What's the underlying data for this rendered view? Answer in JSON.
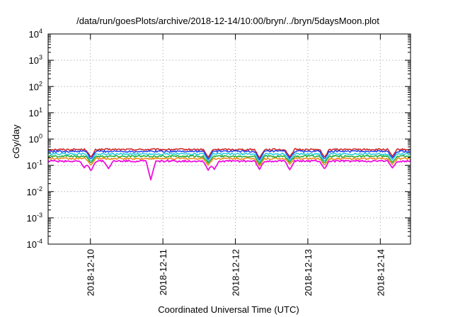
{
  "chart_data": {
    "type": "line",
    "title": "/data/run/goesPlots/archive/2018-12-14/10:00/bryn/../bryn/5daysMoon.plot",
    "xlabel": "Coordinated Universal Time (UTC)",
    "ylabel": "cGy/day",
    "y_scale": "log",
    "ylim": [
      0.0001,
      10000
    ],
    "xlim": [
      "2018-12-09 10:00",
      "2018-12-14 10:00"
    ],
    "y_ticks": [
      {
        "value": 0.0001,
        "base": "10",
        "exp": "-4"
      },
      {
        "value": 0.001,
        "base": "10",
        "exp": "-3"
      },
      {
        "value": 0.01,
        "base": "10",
        "exp": "-2"
      },
      {
        "value": 0.1,
        "base": "10",
        "exp": "-1"
      },
      {
        "value": 1,
        "base": "10",
        "exp": "0"
      },
      {
        "value": 10,
        "base": "10",
        "exp": "1"
      },
      {
        "value": 100,
        "base": "10",
        "exp": "2"
      },
      {
        "value": 1000,
        "base": "10",
        "exp": "3"
      },
      {
        "value": 10000,
        "base": "10",
        "exp": "4"
      }
    ],
    "x_ticks": [
      {
        "value": "2018-12-10 00:00",
        "label": "2018-12-10"
      },
      {
        "value": "2018-12-11 00:00",
        "label": "2018-12-11"
      },
      {
        "value": "2018-12-12 00:00",
        "label": "2018-12-12"
      },
      {
        "value": "2018-12-13 00:00",
        "label": "2018-12-13"
      },
      {
        "value": "2018-12-14 00:00",
        "label": "2018-12-14"
      }
    ],
    "grid": true,
    "legend": "none",
    "series": [
      {
        "color": "#cc2222",
        "baseline": 0.4,
        "dips": [
          {
            "x": "2018-12-10 00:10",
            "y": 0.2
          },
          {
            "x": "2018-12-11 15:00",
            "y": 0.2
          },
          {
            "x": "2018-12-12 08:00",
            "y": 0.19
          },
          {
            "x": "2018-12-12 18:00",
            "y": 0.21
          },
          {
            "x": "2018-12-13 05:30",
            "y": 0.2
          },
          {
            "x": "2018-12-14 04:00",
            "y": 0.22
          }
        ]
      },
      {
        "color": "#2040ee",
        "baseline": 0.34,
        "dips": [
          {
            "x": "2018-12-10 00:10",
            "y": 0.17
          },
          {
            "x": "2018-12-11 15:00",
            "y": 0.17
          },
          {
            "x": "2018-12-12 08:00",
            "y": 0.16
          },
          {
            "x": "2018-12-12 18:00",
            "y": 0.18
          },
          {
            "x": "2018-12-13 05:30",
            "y": 0.17
          },
          {
            "x": "2018-12-14 04:00",
            "y": 0.19
          }
        ]
      },
      {
        "color": "#22ccdd",
        "baseline": 0.27,
        "dips": [
          {
            "x": "2018-12-10 00:10",
            "y": 0.14
          },
          {
            "x": "2018-12-11 15:00",
            "y": 0.14
          },
          {
            "x": "2018-12-12 08:00",
            "y": 0.13
          },
          {
            "x": "2018-12-12 18:00",
            "y": 0.15
          },
          {
            "x": "2018-12-13 05:30",
            "y": 0.14
          },
          {
            "x": "2018-12-14 04:00",
            "y": 0.16
          }
        ]
      },
      {
        "color": "#22aa33",
        "baseline": 0.22,
        "dips": [
          {
            "x": "2018-12-10 00:10",
            "y": 0.12
          },
          {
            "x": "2018-12-11 15:00",
            "y": 0.12
          },
          {
            "x": "2018-12-12 08:00",
            "y": 0.11
          },
          {
            "x": "2018-12-12 18:00",
            "y": 0.13
          },
          {
            "x": "2018-12-13 05:30",
            "y": 0.12
          },
          {
            "x": "2018-12-14 04:00",
            "y": 0.13
          }
        ]
      },
      {
        "color": "#ee8811",
        "baseline": 0.18,
        "dips": [
          {
            "x": "2018-12-10 00:10",
            "y": 0.1
          },
          {
            "x": "2018-12-11 15:00",
            "y": 0.1
          },
          {
            "x": "2018-12-12 08:00",
            "y": 0.095
          },
          {
            "x": "2018-12-12 18:00",
            "y": 0.11
          },
          {
            "x": "2018-12-13 05:30",
            "y": 0.1
          },
          {
            "x": "2018-12-14 04:00",
            "y": 0.11
          }
        ]
      },
      {
        "color": "#ee11dd",
        "baseline": 0.145,
        "dips": [
          {
            "x": "2018-12-09 22:00",
            "y": 0.08
          },
          {
            "x": "2018-12-10 00:10",
            "y": 0.06
          },
          {
            "x": "2018-12-10 06:00",
            "y": 0.075
          },
          {
            "x": "2018-12-10 20:00",
            "y": 0.028
          },
          {
            "x": "2018-12-11 15:00",
            "y": 0.065
          },
          {
            "x": "2018-12-11 17:00",
            "y": 0.07
          },
          {
            "x": "2018-12-12 08:00",
            "y": 0.07
          },
          {
            "x": "2018-12-12 18:00",
            "y": 0.068
          },
          {
            "x": "2018-12-13 05:30",
            "y": 0.072
          },
          {
            "x": "2018-12-14 04:00",
            "y": 0.08
          }
        ]
      }
    ]
  }
}
